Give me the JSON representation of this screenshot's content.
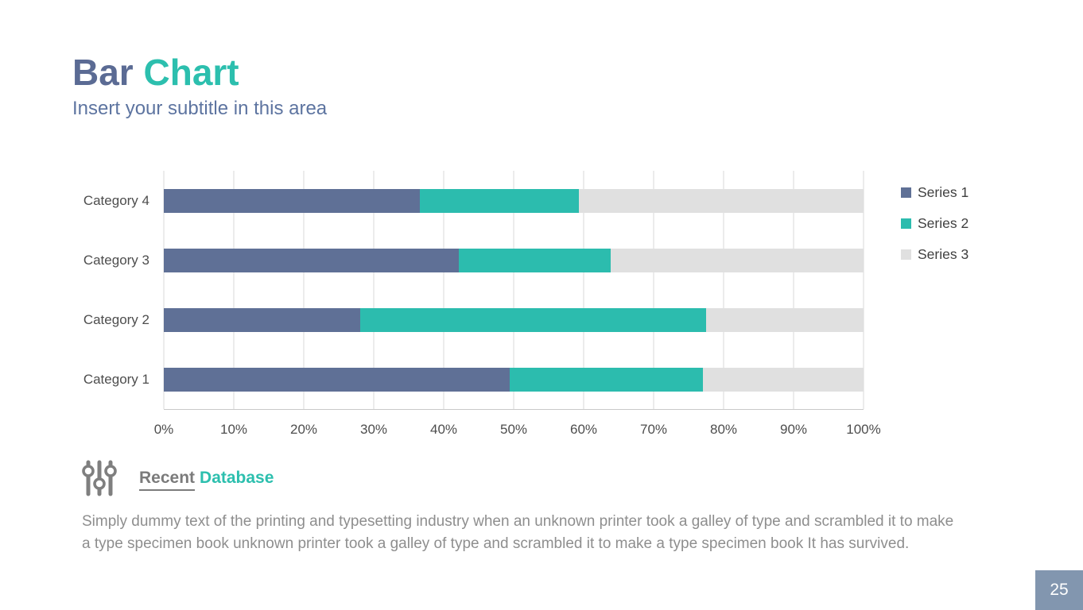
{
  "slide": {
    "title_primary": "Bar",
    "title_accent": "Chart",
    "subtitle": "Insert your subtitle in this area",
    "page_number": "25"
  },
  "colors": {
    "title_primary": "#5b6b94",
    "accent_teal": "#2cbfae",
    "gridline": "#d9d9d9",
    "axis_line": "#c9c9c9",
    "page_box": "#8296af",
    "body_text": "#8e8e8e"
  },
  "chart_data": {
    "type": "bar",
    "subtype": "horizontal-100%-stacked",
    "title": "",
    "xlabel": "",
    "ylabel": "",
    "categories": [
      "Category 1",
      "Category 2",
      "Category 3",
      "Category 4"
    ],
    "category_display_order": "bottom-to-top",
    "series": [
      {
        "name": "Series 1",
        "color": "#5f7096",
        "values": [
          4.3,
          2.5,
          3.5,
          4.5
        ]
      },
      {
        "name": "Series 2",
        "color": "#2cbcae",
        "values": [
          2.4,
          4.4,
          1.8,
          2.8
        ]
      },
      {
        "name": "Series 3",
        "color": "#e0e0e0",
        "values": [
          2.0,
          2.0,
          3.0,
          5.0
        ]
      }
    ],
    "stacked_percentages_by_category": {
      "Category 1": [
        49.4,
        27.6,
        23.0
      ],
      "Category 2": [
        28.1,
        49.4,
        22.5
      ],
      "Category 3": [
        42.2,
        21.7,
        36.1
      ],
      "Category 4": [
        36.6,
        22.8,
        40.6
      ]
    },
    "x_ticks": [
      "0%",
      "10%",
      "20%",
      "30%",
      "40%",
      "50%",
      "60%",
      "70%",
      "80%",
      "90%",
      "100%"
    ],
    "xlim": [
      0,
      100
    ],
    "grid": "vertical-only",
    "legend_position": "right"
  },
  "footer": {
    "icon": "sliders-icon",
    "link_primary": "Recent",
    "link_accent": "Database",
    "paragraph": "Simply dummy text of the printing and typesetting industry when an unknown printer took a galley of type and scrambled it to make a type specimen book unknown printer took a galley of type and scrambled it to make a type specimen book It has survived."
  }
}
